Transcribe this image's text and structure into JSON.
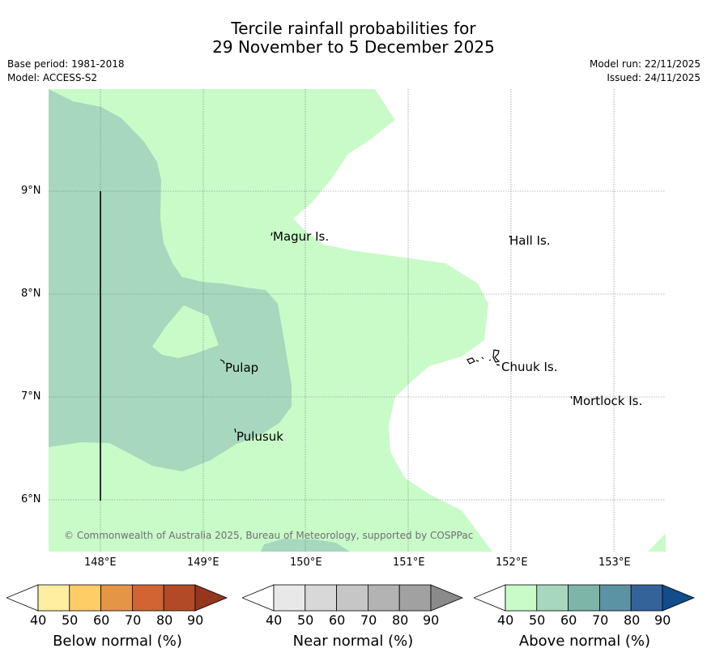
{
  "title": {
    "line1": "Tercile rainfall probabilities for",
    "line2": "29 November to 5 December 2025"
  },
  "meta": {
    "base_period": "Base period: 1981-2018",
    "model": "Model: ACCESS-S2",
    "model_run": "Model run: 22/11/2025",
    "issued": "Issued: 24/11/2025"
  },
  "map": {
    "lon_ticks": [
      "148°E",
      "149°E",
      "150°E",
      "151°E",
      "152°E",
      "153°E"
    ],
    "lat_ticks": [
      "9°N",
      "8°N",
      "7°N",
      "6°N"
    ],
    "places": [
      "Magur Is.",
      "Hall Is.",
      "Pulap",
      "Chuuk Is.",
      "Mortlock Is.",
      "Pulusuk"
    ],
    "copyright": "© Commonwealth of Australia 2025, Bureau of Meteorology, supported by COSPPac",
    "colors": {
      "above_50": "#a7d8bd",
      "above_40": "#c9fbc9",
      "grid": "#777777"
    }
  },
  "colorbars": [
    {
      "name": "below",
      "label": "Below normal (%)",
      "ticks": [
        "40",
        "50",
        "60",
        "70",
        "80",
        "90"
      ],
      "colors": [
        "#ffeda1",
        "#fecd66",
        "#e49545",
        "#d06533",
        "#b34a27",
        "#95361e"
      ]
    },
    {
      "name": "near",
      "label": "Near normal (%)",
      "ticks": [
        "40",
        "50",
        "60",
        "70",
        "80",
        "90"
      ],
      "colors": [
        "#e8e8e8",
        "#d8d8d8",
        "#c6c6c6",
        "#b3b3b3",
        "#a1a1a1",
        "#8a8a8a"
      ]
    },
    {
      "name": "above",
      "label": "Above normal (%)",
      "ticks": [
        "40",
        "50",
        "60",
        "70",
        "80",
        "90"
      ],
      "colors": [
        "#c9fbc9",
        "#a7d8bd",
        "#7db5a9",
        "#5b93a4",
        "#346399",
        "#124c8a"
      ]
    }
  ]
}
